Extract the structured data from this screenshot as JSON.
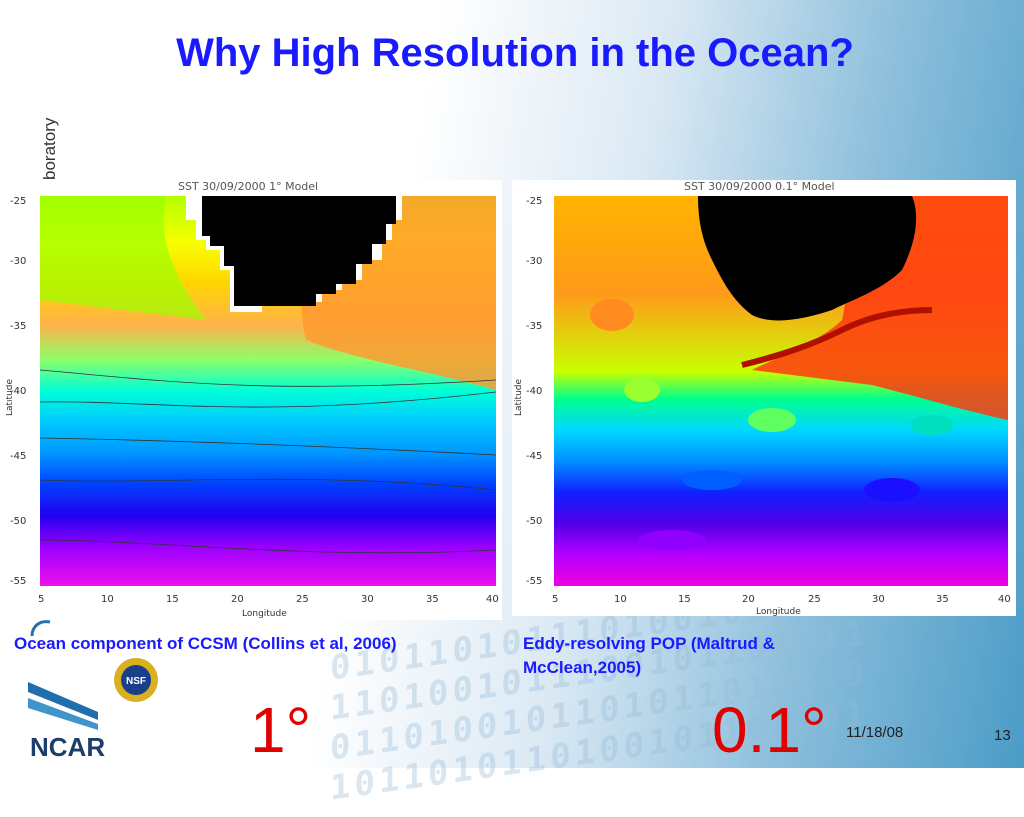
{
  "slide": {
    "title": "Why High Resolution in the Ocean?",
    "side_text": "boratory",
    "date": "11/18/08",
    "page_number": "13"
  },
  "panels": {
    "left": {
      "plot_title": "SST 30/09/2000 1° Model",
      "caption": "Ocean component of CCSM (Collins et al, 2006)",
      "resolution": "1°",
      "ylabel": "Latitude",
      "xlabel": "Longitude",
      "yticks": [
        "-25",
        "-30",
        "-35",
        "-40",
        "-45",
        "-50",
        "-55"
      ],
      "xticks": [
        "5",
        "10",
        "15",
        "20",
        "25",
        "30",
        "35",
        "40"
      ]
    },
    "right": {
      "plot_title": "SST 30/09/2000 0.1° Model",
      "caption": "Eddy-resolving POP (Maltrud & McClean,2005)",
      "resolution": "0.1°",
      "ylabel": "Latitude",
      "xlabel": "Longitude",
      "yticks": [
        "-25",
        "-30",
        "-35",
        "-40",
        "-45",
        "-50",
        "-55"
      ],
      "xticks": [
        "5",
        "10",
        "15",
        "20",
        "25",
        "30",
        "35",
        "40"
      ]
    }
  },
  "logos": {
    "ncar": "NCAR",
    "nsf": "NSF"
  },
  "colors": {
    "title": "#1a1aff",
    "resolution_label": "#e00000"
  }
}
